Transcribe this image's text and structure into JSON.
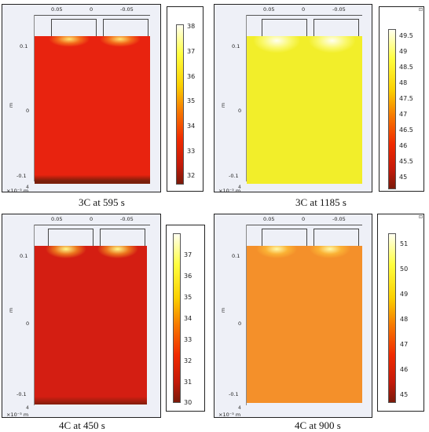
{
  "panels": [
    {
      "caption": "3C at 595 s",
      "x_ticks": [
        "0.05",
        "0",
        "-0.05"
      ],
      "y_ticks": [
        "0.1",
        "0",
        "-0.1"
      ],
      "y_unit": "m",
      "x_unit": "×10⁻³ m",
      "corner_tick": "4",
      "colorbar_ticks": [
        "38",
        "37",
        "36",
        "35",
        "34",
        "33",
        "32"
      ],
      "colorbar_min": 31.2,
      "colorbar_max": 38.3,
      "body_color": "#e8230f",
      "colorbar_gradient": [
        "#7a1a0a",
        "#c41a0a",
        "#f02a00",
        "#f77a00",
        "#fbd000",
        "#ffff40",
        "#fffff0"
      ]
    },
    {
      "caption": "3C at 1185 s",
      "x_ticks": [
        "0.05",
        "0",
        "-0.05"
      ],
      "y_ticks": [
        "0.1",
        "0",
        "-0.1"
      ],
      "y_unit": "m",
      "x_unit": "×10⁻³ m",
      "corner_tick": "4",
      "colorbar_ticks": [
        "49.5",
        "49",
        "48.5",
        "48",
        "47.5",
        "47",
        "46.5",
        "46",
        "45.5",
        "45"
      ],
      "colorbar_min": 44.8,
      "colorbar_max": 49.9,
      "body_color": "#f2ee2a",
      "colorbar_gradient": [
        "#7a1a0a",
        "#c41a0a",
        "#f02a00",
        "#f77a00",
        "#fbd000",
        "#ffff40",
        "#fffff0"
      ]
    },
    {
      "caption": "4C at 450 s",
      "x_ticks": [
        "0.05",
        "0",
        "-0.05"
      ],
      "y_ticks": [
        "0.1",
        "0",
        "-0.1"
      ],
      "y_unit": "m",
      "x_unit": "×10⁻³ m",
      "corner_tick": "4",
      "colorbar_ticks": [
        "37",
        "36",
        "35",
        "34",
        "33",
        "32",
        "31",
        "30"
      ],
      "colorbar_min": 29.7,
      "colorbar_max": 37.7,
      "body_color": "#d41e12",
      "colorbar_gradient": [
        "#7a1a0a",
        "#c41a0a",
        "#f02a00",
        "#f77a00",
        "#fbd000",
        "#ffff40",
        "#fffff0"
      ]
    },
    {
      "caption": "4C at 900 s",
      "x_ticks": [
        "0.05",
        "0",
        "-0.05"
      ],
      "y_ticks": [
        "0.1",
        "0",
        "-0.1"
      ],
      "y_unit": "m",
      "x_unit": "×10⁻³ m",
      "corner_tick": "4",
      "colorbar_ticks": [
        "51",
        "50",
        "49",
        "48",
        "47",
        "46",
        "45"
      ],
      "colorbar_min": 44.5,
      "colorbar_max": 51.7,
      "body_color": "#f4902a",
      "colorbar_gradient": [
        "#7a1a0a",
        "#c41a0a",
        "#f02a00",
        "#f77a00",
        "#fbd000",
        "#ffff40",
        "#fffff0"
      ]
    }
  ]
}
